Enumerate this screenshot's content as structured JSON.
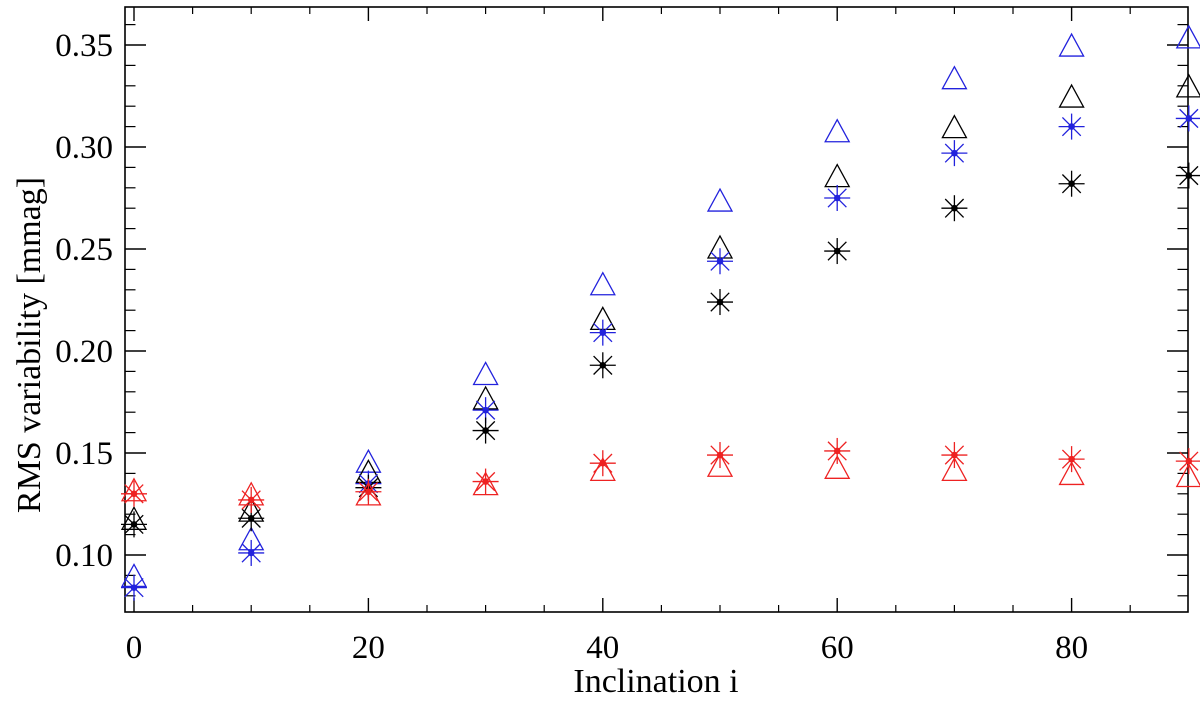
{
  "figure": {
    "background": "#ffffff",
    "frame_color": "#000000"
  },
  "chart_data": {
    "type": "scatter",
    "title": "",
    "xlabel": "Inclination i",
    "ylabel": "RMS variability [mmag]",
    "x": [
      0,
      10,
      20,
      30,
      40,
      50,
      60,
      70,
      80,
      90
    ],
    "xlim": [
      -0.8,
      90.3
    ],
    "ylim": [
      0.072,
      0.368
    ],
    "x_major_ticks": [
      0,
      20,
      40,
      60,
      80
    ],
    "x_minor_tick_step": 5,
    "y_major_ticks": [
      0.1,
      0.15,
      0.2,
      0.25,
      0.3,
      0.35
    ],
    "y_minor_tick_step": 0.01,
    "grid": false,
    "legend": "none",
    "series": [
      {
        "name": "blue-triangle",
        "marker": "triangle",
        "color": "#2222dd",
        "values": [
          0.089,
          0.107,
          0.145,
          0.188,
          0.232,
          0.273,
          0.307,
          0.333,
          0.349,
          0.353
        ]
      },
      {
        "name": "black-triangle",
        "marker": "triangle",
        "color": "#000000",
        "values": [
          0.117,
          0.121,
          0.14,
          0.176,
          0.215,
          0.25,
          0.285,
          0.309,
          0.324,
          0.329
        ]
      },
      {
        "name": "blue-asterisk",
        "marker": "asterisk",
        "color": "#2222dd",
        "values": [
          0.084,
          0.101,
          0.135,
          0.171,
          0.209,
          0.244,
          0.275,
          0.297,
          0.31,
          0.314
        ]
      },
      {
        "name": "black-asterisk",
        "marker": "asterisk",
        "color": "#000000",
        "values": [
          0.115,
          0.118,
          0.133,
          0.161,
          0.193,
          0.224,
          0.249,
          0.27,
          0.282,
          0.286
        ]
      },
      {
        "name": "red-asterisk",
        "marker": "asterisk",
        "color": "#ee2222",
        "values": [
          0.13,
          0.127,
          0.131,
          0.136,
          0.145,
          0.149,
          0.151,
          0.149,
          0.147,
          0.146
        ]
      },
      {
        "name": "red-triangle",
        "marker": "triangle",
        "color": "#ee2222",
        "values": [
          0.131,
          0.129,
          0.129,
          0.134,
          0.141,
          0.143,
          0.142,
          0.141,
          0.139,
          0.138
        ]
      }
    ]
  }
}
